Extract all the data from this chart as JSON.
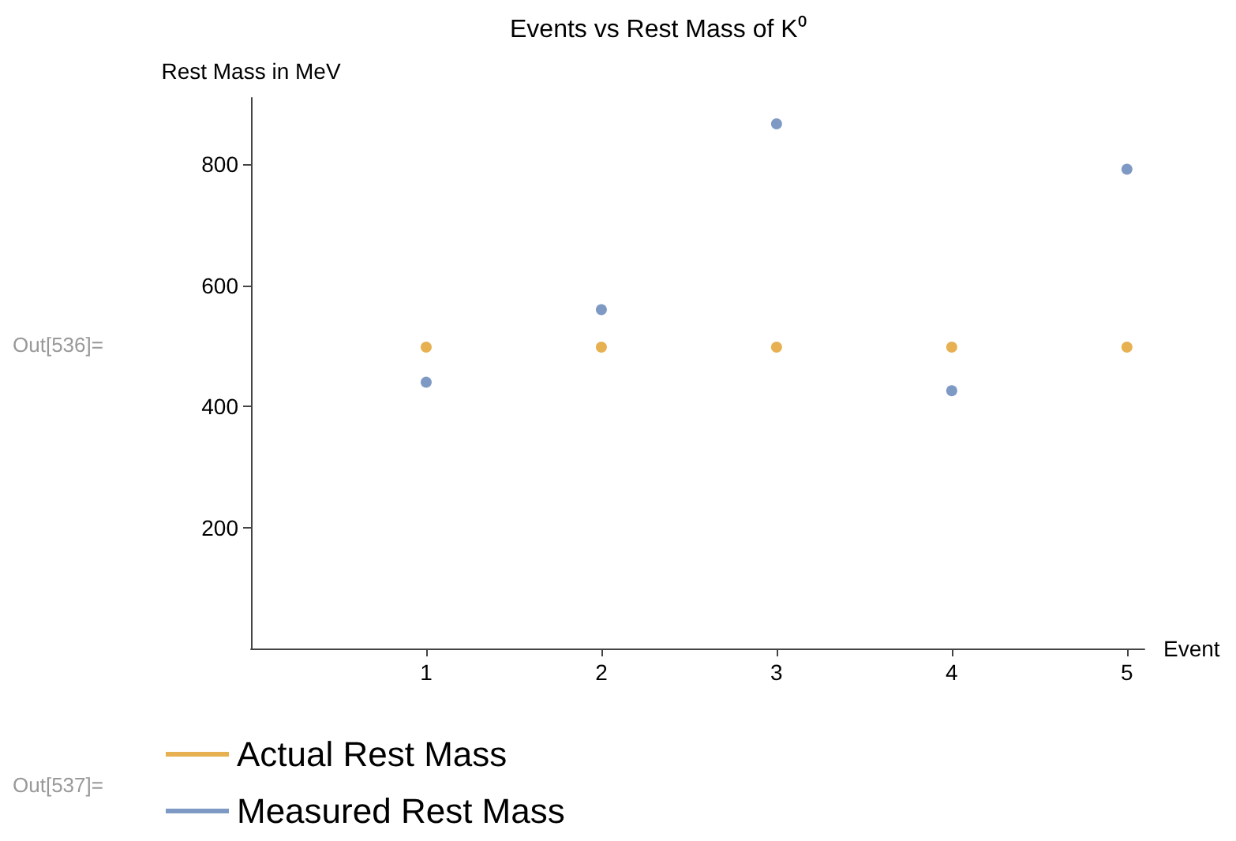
{
  "chart_data": {
    "type": "scatter",
    "title": "Events vs Rest Mass of K⁰",
    "xlabel": "Event",
    "ylabel": "Rest Mass in MeV",
    "x": [
      1,
      2,
      3,
      4,
      5
    ],
    "series": [
      {
        "name": "Actual Rest Mass",
        "color": "#e19c24",
        "values": [
          498,
          498,
          498,
          498,
          498
        ]
      },
      {
        "name": "Measured Rest Mass",
        "color": "#5e81b5",
        "values": [
          440,
          560,
          867,
          426,
          792
        ]
      }
    ],
    "xlim": [
      0,
      5.1
    ],
    "xticks": [
      1,
      2,
      3,
      4,
      5
    ],
    "ylim": [
      0,
      910
    ],
    "yticks": [
      200,
      400,
      600,
      800
    ],
    "grid": false,
    "legend": "bottom left",
    "marker": "circle",
    "annotations": [
      "Out[536]=",
      "Out[537]="
    ]
  }
}
